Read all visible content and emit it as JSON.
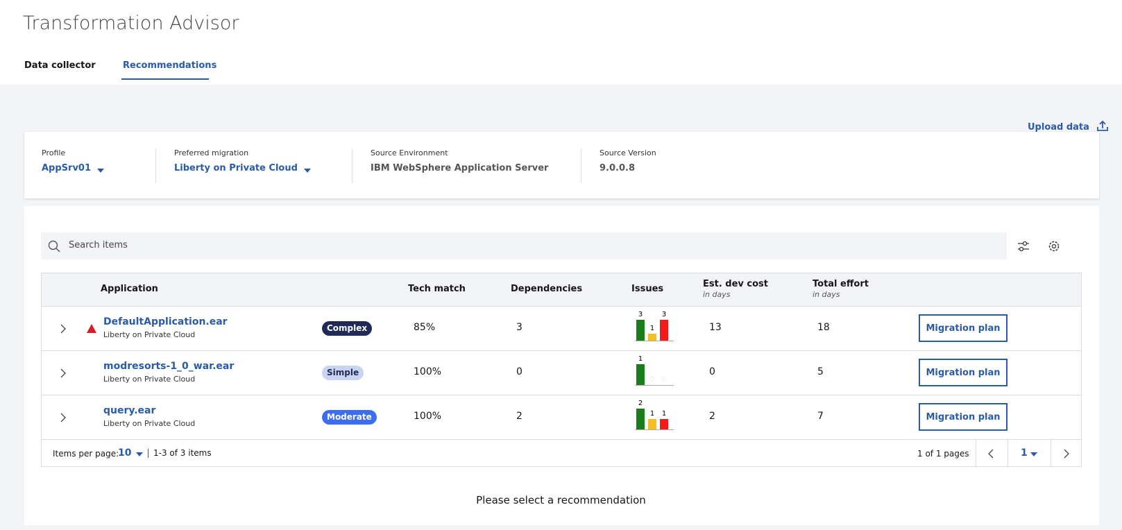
{
  "header": {
    "title": "Transformation Advisor",
    "tabs": [
      "Data collector",
      "Recommendations"
    ],
    "active_tab": 1
  },
  "upload": "Upload data",
  "profile": [
    {
      "label": "Profile",
      "value": "AppSrv01",
      "dropdown": true
    },
    {
      "label": "Preferred migration",
      "value": "Liberty on Private Cloud",
      "dropdown": true
    },
    {
      "label": "Source Environment",
      "value": "IBM WebSphere Application Server",
      "dropdown": false
    },
    {
      "label": "Source Version",
      "value": "9.0.0.8",
      "dropdown": false
    }
  ],
  "search": "Search items",
  "table": {
    "headers": [
      {
        "text": "Application"
      },
      {
        "text": "Tech match"
      },
      {
        "text": "Dependencies"
      },
      {
        "text": "Issues"
      },
      {
        "text": "Est. dev cost",
        "sub": "in days"
      },
      {
        "text": "Total effort",
        "sub": "in days"
      }
    ],
    "rows": [
      {
        "name": "DefaultApplication.ear",
        "target": "Liberty on Private Cloud",
        "warning": true,
        "complexity": "Complex",
        "badge_color": "#1f2a56",
        "badge_text": "#ffffff",
        "tech": "85%",
        "deps": "3",
        "issues": [
          3,
          1,
          3
        ],
        "cost": "13",
        "effort": "18",
        "action": "Migration plan"
      },
      {
        "name": "modresorts-1_0_war.ear",
        "target": "Liberty on Private Cloud",
        "warning": false,
        "complexity": "Simple",
        "badge_color": "#c9d4f3",
        "badge_text": "#1f2a56",
        "tech": "100%",
        "deps": "0",
        "issues": [
          1,
          0,
          0
        ],
        "cost": "0",
        "effort": "5",
        "action": "Migration plan"
      },
      {
        "name": "query.ear",
        "target": "Liberty on Private Cloud",
        "warning": false,
        "complexity": "Moderate",
        "badge_color": "#3b6ef0",
        "badge_text": "#ffffff",
        "tech": "100%",
        "deps": "2",
        "issues": [
          2,
          1,
          1
        ],
        "cost": "2",
        "effort": "7",
        "action": "Migration plan"
      }
    ],
    "issue_colors": [
      "#1c7d1c",
      "#f4c021",
      "#f51b1b"
    ]
  },
  "pagination": {
    "per_page_label": "Items per page:",
    "per_page": "10",
    "range": "1-3 of 3 items",
    "pages": "1 of 1 pages",
    "page": "1"
  },
  "message": "Please select a recommendation"
}
